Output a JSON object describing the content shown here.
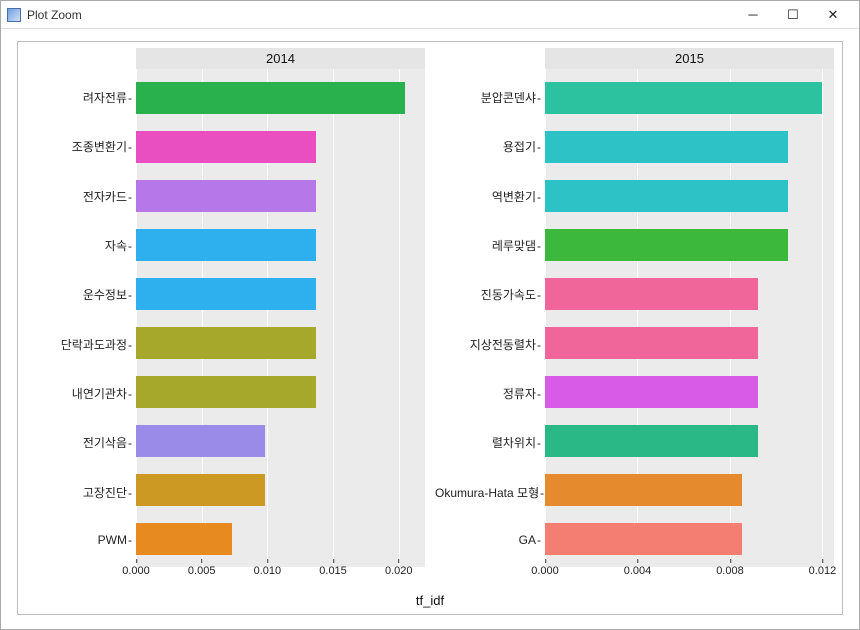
{
  "window": {
    "title": "Plot Zoom"
  },
  "axis_label": "tf_idf",
  "panel_background": "#ebebeb",
  "grid_color": "#ffffff",
  "strip_background": "#e5e5e5",
  "left": {
    "strip": "2014",
    "ticks": [
      0.0,
      0.005,
      0.01,
      0.015,
      0.02
    ],
    "tick_labels": [
      "0.000",
      "0.005",
      "0.010",
      "0.015",
      "0.020"
    ],
    "xmax": 0.022,
    "bars": [
      {
        "label": "려자전류",
        "value": 0.0205,
        "color": "#28b14c"
      },
      {
        "label": "조종변환기",
        "value": 0.0137,
        "color": "#ea4fc1"
      },
      {
        "label": "전자카드",
        "value": 0.0137,
        "color": "#b678e8"
      },
      {
        "label": "자속",
        "value": 0.0137,
        "color": "#2eb0ee"
      },
      {
        "label": "운수정보",
        "value": 0.0137,
        "color": "#2eb0ee"
      },
      {
        "label": "단락과도과정",
        "value": 0.0137,
        "color": "#a5a82b"
      },
      {
        "label": "내연기관차",
        "value": 0.0137,
        "color": "#a5a82b"
      },
      {
        "label": "전기삭음",
        "value": 0.0098,
        "color": "#9b8be8"
      },
      {
        "label": "고장진단",
        "value": 0.0098,
        "color": "#cc9a23"
      },
      {
        "label": "PWM",
        "value": 0.0073,
        "color": "#e78a1f"
      }
    ]
  },
  "right": {
    "strip": "2015",
    "ticks": [
      0.0,
      0.004,
      0.008,
      0.012
    ],
    "tick_labels": [
      "0.000",
      "0.004",
      "0.008",
      "0.012"
    ],
    "xmax": 0.0125,
    "bars": [
      {
        "label": "분압콘덴샤",
        "value": 0.012,
        "color": "#2cc2a0"
      },
      {
        "label": "용접기",
        "value": 0.0105,
        "color": "#2cc2c6"
      },
      {
        "label": "역변환기",
        "value": 0.0105,
        "color": "#2cc2c6"
      },
      {
        "label": "레루맞댐",
        "value": 0.0105,
        "color": "#3cb93c"
      },
      {
        "label": "진동가속도",
        "value": 0.0092,
        "color": "#f1669a"
      },
      {
        "label": "지상전동렬차",
        "value": 0.0092,
        "color": "#f1669a"
      },
      {
        "label": "정류자",
        "value": 0.0092,
        "color": "#d85be8"
      },
      {
        "label": "렬차위치",
        "value": 0.0092,
        "color": "#2bb887"
      },
      {
        "label": "Okumura-Hata 모형",
        "value": 0.0085,
        "color": "#e68a2e"
      },
      {
        "label": "GA",
        "value": 0.0085,
        "color": "#f37e71"
      }
    ]
  }
}
